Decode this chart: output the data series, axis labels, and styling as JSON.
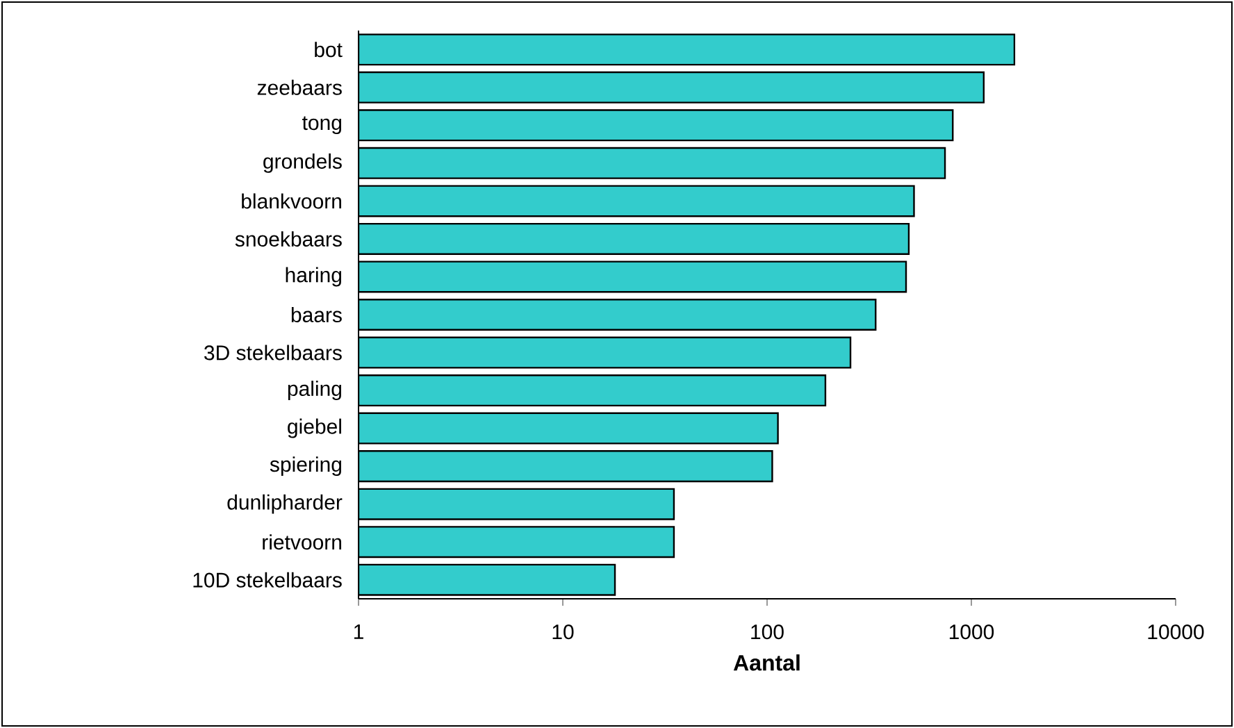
{
  "chart_data": {
    "type": "bar",
    "orientation": "horizontal",
    "log": "x",
    "xlabel": "**Aantal**",
    "categories": [
      "bot",
      "zeebaars",
      "tong",
      "grondels",
      "blankvoorn",
      "snoekbaars",
      "haring",
      "baars",
      "3D stekelbaars",
      "paling",
      "giebel",
      "spiering",
      "dunlipharder",
      "rietvoorn",
      "10D stekelbaars"
    ],
    "values": [
      1625,
      1150,
      811,
      743,
      524,
      494,
      479,
      340,
      256,
      193,
      113,
      106,
      35,
      35,
      18
    ],
    "color": "#33cccc",
    "xlim": [
      1,
      10000
    ],
    "xticks": [
      1,
      10,
      100,
      1000,
      10000
    ]
  }
}
